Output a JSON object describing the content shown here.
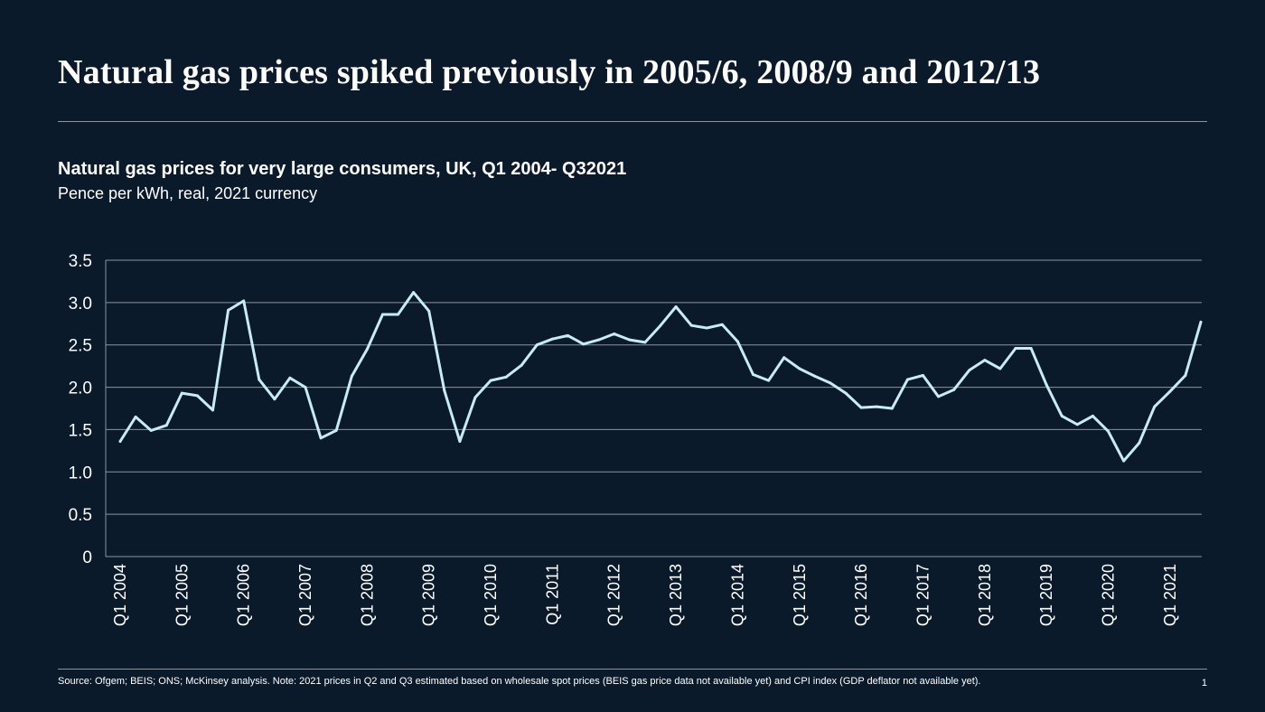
{
  "headline": "Natural gas prices spiked previously in 2005/6, 2008/9 and 2012/13",
  "footer": {
    "source": "Source: Ofgem; BEIS; ONS; McKinsey analysis. Note: 2021 prices in Q2 and Q3 estimated based on wholesale spot prices (BEIS gas price data not available yet) and CPI index (GDP deflator not available yet).",
    "page_number": "1"
  },
  "colors": {
    "background": "#0b1a2b",
    "line": "#c7ecf4",
    "grid": "#8a94a0"
  },
  "chart_data": {
    "type": "line",
    "title": "Natural gas prices for very large consumers, UK, Q1 2004- Q32021",
    "subtitle": "Pence per kWh, real, 2021 currency",
    "xlabel": "",
    "ylabel": "",
    "ylim": [
      0,
      3.5
    ],
    "yticks": [
      "0",
      "0.5",
      "1.0",
      "1.5",
      "2.0",
      "2.5",
      "3.0",
      "3.5"
    ],
    "grid": true,
    "x_tick_labels": [
      "Q1 2004",
      "Q1 2005",
      "Q1 2006",
      "Q1 2007",
      "Q1 2008",
      "Q1 2009",
      "Q1 2010",
      "Q1 2011",
      "Q1 2012",
      "Q1 2013",
      "Q1 2014",
      "Q1 2015",
      "Q1 2016",
      "Q1 2017",
      "Q1 2018",
      "Q1 2019",
      "Q1 2020",
      "Q1 2021"
    ],
    "series": [
      {
        "values": [
          1.36,
          1.65,
          1.49,
          1.55,
          1.93,
          1.9,
          1.73,
          2.91,
          3.02,
          2.09,
          1.86,
          2.11,
          2.0,
          1.4,
          1.49,
          2.13,
          2.45,
          2.86,
          2.86,
          3.12,
          2.9,
          1.96,
          1.36,
          1.88,
          2.08,
          2.12,
          2.26,
          2.5,
          2.57,
          2.61,
          2.51,
          2.56,
          2.63,
          2.56,
          2.53,
          2.73,
          2.95,
          2.73,
          2.7,
          2.74,
          2.54,
          2.15,
          2.08,
          2.35,
          2.22,
          2.13,
          2.05,
          1.93,
          1.76,
          1.77,
          1.75,
          2.09,
          2.14,
          1.89,
          1.97,
          2.2,
          2.32,
          2.22,
          2.46,
          2.46,
          2.03,
          1.66,
          1.56,
          1.66,
          1.48,
          1.13,
          1.34,
          1.77,
          1.95,
          2.14,
          2.77
        ]
      }
    ]
  }
}
